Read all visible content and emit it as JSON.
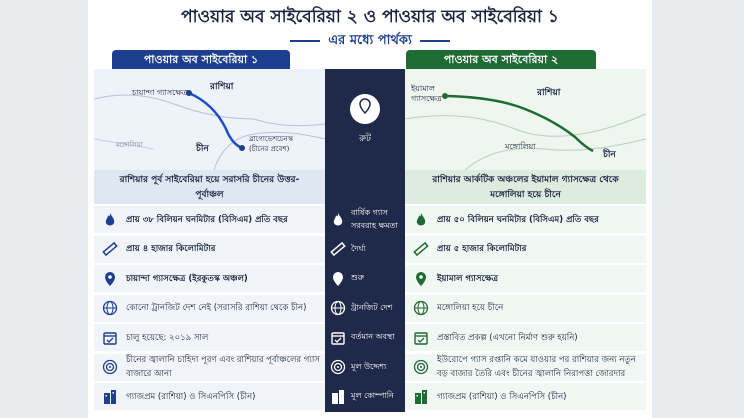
{
  "header": {
    "title": "পাওয়ার অব সাইবেরিয়া ২ ও পাওয়ার অব সাইবেরিয়া ১",
    "subtitle": "এর মধ্যে পার্থক্য"
  },
  "columns": {
    "left": "পাওয়ার অব সাইবেরিয়া ১",
    "right": "পাওয়ার অব সাইবেরিয়া ২"
  },
  "maps": {
    "left": [
      "চায়ান্দা গ্যাসক্ষেত্র",
      "রাশিয়া",
      "চীন",
      "ব্লাগোভেশচেনস্ক",
      "(চীনের প্রবেশ)",
      "মঙ্গোলিয়া"
    ],
    "right": [
      "ইয়ামাল",
      "গ্যাসক্ষেত্র",
      "রাশিয়া",
      "মঙ্গোলিয়া",
      "চীন"
    ]
  },
  "route_label": "রুট",
  "route": {
    "left": "রাশিয়ার পূর্ব সাইবেরিয়া হয়ে সরাসরি চীনের উত্তর-পূর্বাঞ্চল",
    "right": "রাশিয়ার আর্কটিক অঞ্চলের ইয়ামাল গ্যাসক্ষেত্র থেকে মঙ্গোলিয়া হয়ে চীনে"
  },
  "rows": [
    {
      "label": "বার্ষিক গ্যাস সরবরাহ ক্ষমতা",
      "left": "প্রায় ৩৮ বিলিয়ন ঘনমিটার (বিসিএম) প্রতি বছর",
      "right": "প্রায় ৫০ বিলিয়ন ঘনমিটার (বিসিএম) প্রতি বছর"
    },
    {
      "label": "দৈর্ঘ্য",
      "left": "প্রায় ৪ হাজার কিলোমিটার",
      "right": "প্রায় ৫ হাজার কিলোমিটার"
    },
    {
      "label": "শুরু",
      "left": "চায়ান্দা গ্যাসক্ষেত্র (ইরকুতস্ক অঞ্চল)",
      "right": "ইয়ামাল গ্যাসক্ষেত্র"
    },
    {
      "label": "ট্রানজিট দেশ",
      "left": "কোনো ট্রানজিট দেশ নেই (সরাসরি রাশিয়া থেকে চীন)",
      "right": "মঙ্গোলিয়া হয়ে চীনে"
    },
    {
      "label": "বর্তমান অবস্থা",
      "left": "চালু হয়েছে: ২০১৯ সাল",
      "right": "প্রস্তাবিত প্রকল্প (এখনো নির্মাণ শুরু হয়নি)"
    },
    {
      "label": "মূল উদ্দেশ্য",
      "left": "চীনের জ্বালানি চাহিদা পূরণ এবং রাশিয়ার পূর্বাঞ্চলের গ্যাস বাজারে আনা",
      "right": "ইউরোপে গ্যাস রপ্তানি কমে যাওয়ার পর রাশিয়ার জন্য নতুন বড় বাজার তৈরি এবং চীনের জ্বালানি নিরাপত্তা জোরদার"
    },
    {
      "label": "মূল কোম্পানি",
      "left": "গ্যাজপ্রম (রাশিয়া) ও সিএনপিসি (চীন)",
      "right": "গ্যাজপ্রম (রাশিয়া) ও সিএনপিসি (চীন)"
    }
  ]
}
